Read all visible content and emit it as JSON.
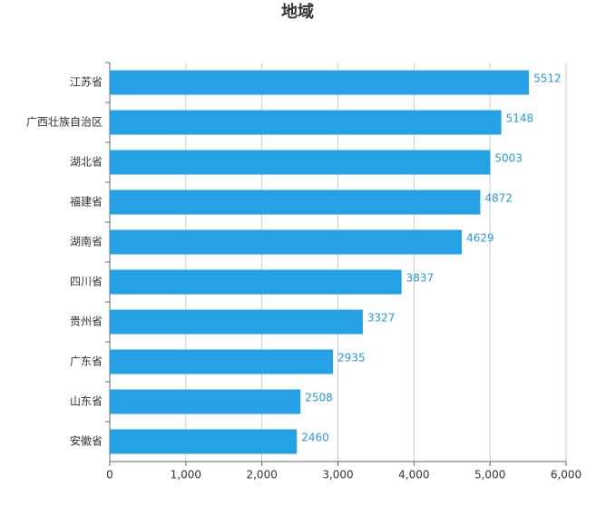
{
  "chart_data": {
    "type": "hbar",
    "title": "地域",
    "categories": [
      "江苏省",
      "广西壮族自治区",
      "湖北省",
      "福建省",
      "湖南省",
      "四川省",
      "贵州省",
      "广东省",
      "山东省",
      "安徽省"
    ],
    "values": [
      5512,
      5148,
      5003,
      4872,
      4629,
      3837,
      3327,
      2935,
      2508,
      2460
    ],
    "color": "#27a1e6",
    "xlim": [
      0,
      6000
    ],
    "xticks": [
      0,
      {
        "value": 1000,
        "label": "1,000"
      },
      {
        "value": 2000,
        "label": "2,000"
      },
      {
        "value": 3000,
        "label": "3,000"
      },
      {
        "value": 4000,
        "label": "4,000"
      },
      {
        "value": 5000,
        "label": "5,000"
      },
      {
        "value": 6000,
        "label": "6,000"
      }
    ],
    "grid": true
  }
}
